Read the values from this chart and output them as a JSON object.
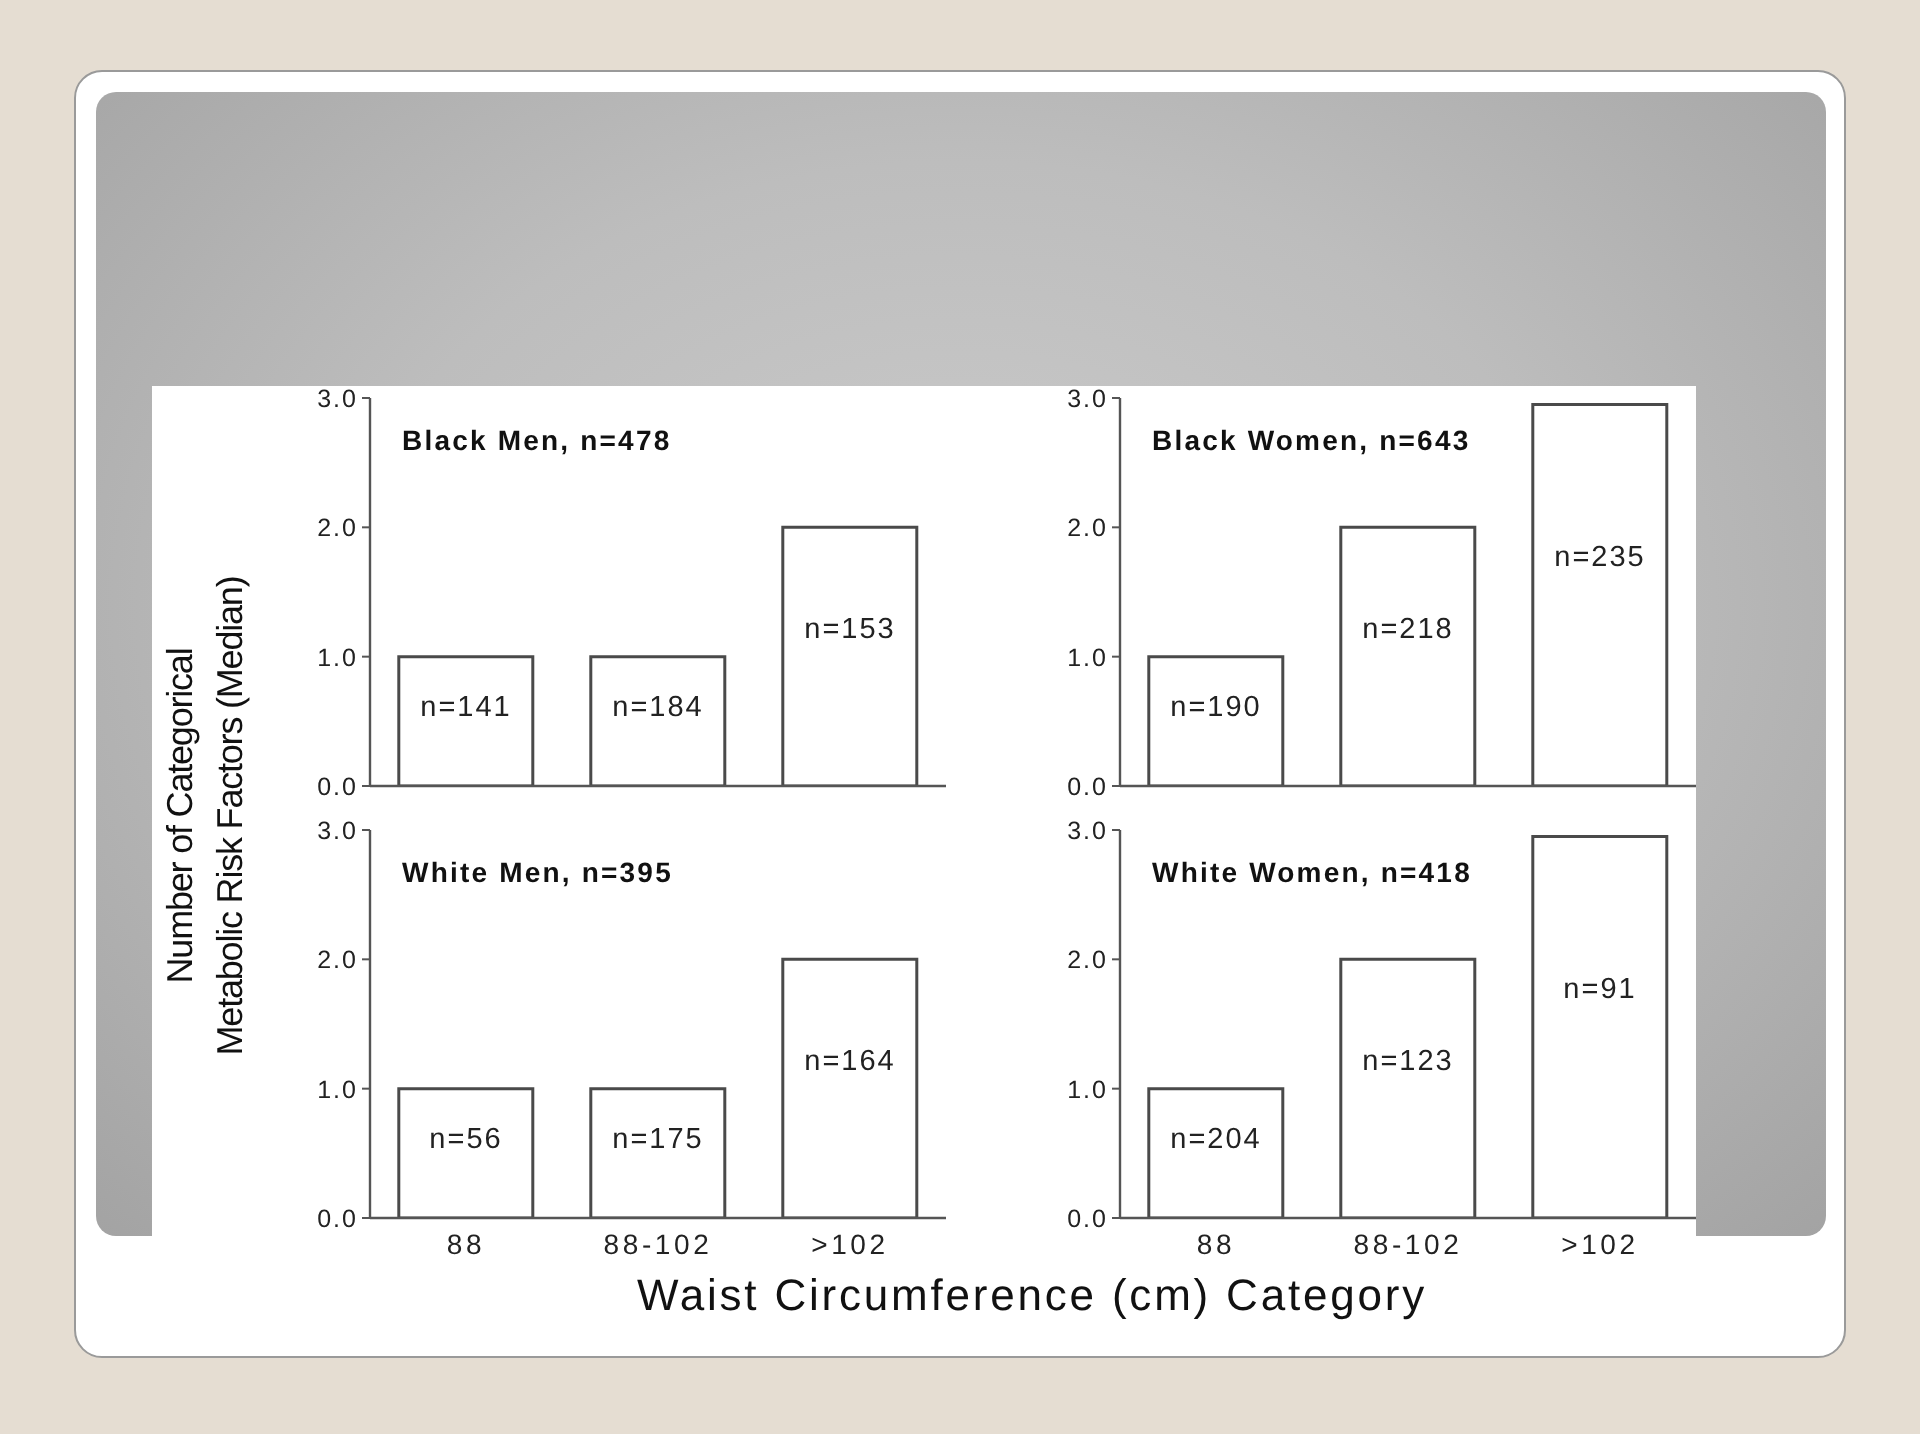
{
  "chart_data": [
    {
      "type": "bar",
      "title": "Black Men, n=478",
      "categories": [
        null,
        null,
        null
      ],
      "values": [
        1,
        1,
        2
      ],
      "color": "#ffffff",
      "ylim": [
        0,
        3
      ],
      "yticks": [
        {
          "value": 0,
          "label": "0.0"
        },
        {
          "value": 1,
          "label": "1.0"
        },
        {
          "value": 2,
          "label": "2.0"
        },
        {
          "value": 3,
          "label": "3.0"
        }
      ],
      "tick_labels": "y",
      "annotations": [
        "n=141",
        "n=184",
        "n=153"
      ]
    },
    {
      "type": "bar",
      "title": "Black Women, n=643",
      "categories": [
        null,
        null,
        null
      ],
      "values": [
        1,
        2,
        2.95
      ],
      "color": "#ffffff",
      "ylim": [
        0,
        3
      ],
      "yticks": [
        {
          "value": 0,
          "label": "0.0"
        },
        {
          "value": 1,
          "label": "1.0"
        },
        {
          "value": 2,
          "label": "2.0"
        },
        {
          "value": 3,
          "label": "3.0"
        }
      ],
      "tick_labels": "y",
      "annotations": [
        "n=190",
        "n=218",
        "n=235"
      ]
    },
    {
      "type": "bar",
      "title": "White Men, n=395",
      "categories": [
        "88",
        "88-102",
        ">102"
      ],
      "values": [
        1,
        1,
        2
      ],
      "color": "#ffffff",
      "ylim": [
        0,
        3
      ],
      "yticks": [
        {
          "value": 0,
          "label": "0.0"
        },
        {
          "value": 1,
          "label": "1.0"
        },
        {
          "value": 2,
          "label": "2.0"
        },
        {
          "value": 3,
          "label": "3.0"
        }
      ],
      "xlabel": "Waist Circumference (cm) Category",
      "ylabel": "Number of Categorical\nMetabolic Risk Factors (Median)",
      "annotations": [
        "n=56",
        "n=175",
        "n=164"
      ]
    },
    {
      "type": "bar",
      "title": "White Women, n=418",
      "categories": [
        "88",
        "88-102",
        ">102"
      ],
      "values": [
        1,
        2,
        2.95
      ],
      "color": "#ffffff",
      "ylim": [
        0,
        3
      ],
      "yticks": [
        {
          "value": 0,
          "label": "0.0"
        },
        {
          "value": 1,
          "label": "1.0"
        },
        {
          "value": 2,
          "label": "2.0"
        },
        {
          "value": 3,
          "label": "3.0"
        }
      ],
      "annotations": [
        "n=204",
        "n=123",
        "n=91"
      ]
    }
  ]
}
